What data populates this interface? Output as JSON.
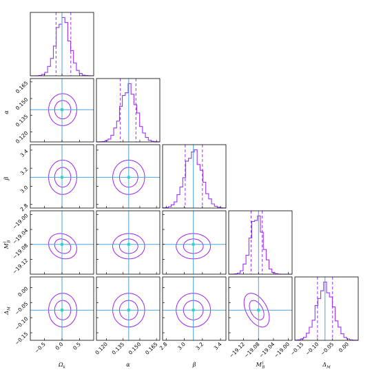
{
  "chart_data": {
    "type": "corner",
    "parameters": [
      {
        "key": "omega",
        "label": "Ω_k",
        "sub": "k",
        "base": "Ω",
        "range": [
          -0.9,
          0.9
        ],
        "ticks": [
          -0.5,
          0.0,
          0.5
        ],
        "tick_labels": [
          "−0.5",
          "0.0",
          "0.5"
        ],
        "truth": 0.0,
        "mean": 0.02,
        "sigma": 0.2,
        "q16": -0.17,
        "q84": 0.25
      },
      {
        "key": "alpha",
        "label": "α",
        "base": "α",
        "range": [
          0.111,
          0.168
        ],
        "ticks": [
          0.12,
          0.135,
          0.15,
          0.165
        ],
        "tick_labels": [
          "0.120",
          "0.135",
          "0.150",
          "0.165"
        ],
        "truth": 0.14,
        "mean": 0.14,
        "sigma": 0.0072,
        "q16": 0.1325,
        "q84": 0.1465
      },
      {
        "key": "beta",
        "label": "β",
        "base": "β",
        "range": [
          2.76,
          3.46
        ],
        "ticks": [
          2.8,
          3.0,
          3.2,
          3.4
        ],
        "tick_labels": [
          "2.8",
          "3.0",
          "3.2",
          "3.4"
        ],
        "truth": 3.1,
        "mean": 3.1,
        "sigma": 0.095,
        "q16": 3.01,
        "q84": 3.2
      },
      {
        "key": "mb",
        "label": "M_B^1",
        "base": "M",
        "sub": "B",
        "sup": "1",
        "range": [
          -19.16,
          -18.99
        ],
        "ticks": [
          -19.12,
          -19.08,
          -19.04,
          -19.0
        ],
        "tick_labels": [
          "−19.12",
          "−19.08",
          "−19.04",
          "−19.00"
        ],
        "truth": -19.08,
        "mean": -19.085,
        "sigma": 0.017,
        "q16": -19.1,
        "q84": -19.07
      },
      {
        "key": "dm",
        "label": "Δ_M",
        "base": "Δ",
        "sub": "M",
        "range": [
          -0.175,
          0.035
        ],
        "ticks": [
          -0.15,
          -0.1,
          -0.05,
          0.0
        ],
        "tick_labels": [
          "−0.15",
          "−0.10",
          "−0.05",
          "0.00"
        ],
        "truth": -0.075,
        "mean": -0.075,
        "sigma": 0.028,
        "q16": -0.1,
        "q84": -0.05
      }
    ],
    "y_tick_params": {
      "alpha": {
        "ticks": [
          0.12,
          0.135,
          0.15,
          0.165
        ],
        "tick_labels": [
          "0.120",
          "0.135",
          "0.150",
          "0.165"
        ]
      },
      "beta": {
        "ticks": [
          2.8,
          3.0,
          3.2,
          3.4
        ],
        "tick_labels": [
          "2.8",
          "3.0",
          "3.2",
          "3.4"
        ]
      },
      "mb": {
        "ticks": [
          -19.12,
          -19.08,
          -19.04,
          -19.0
        ],
        "tick_labels": [
          "−19.12",
          "−19.08",
          "−19.04",
          "−19.00"
        ]
      },
      "dm": {
        "ticks": [
          -0.15,
          -0.1,
          -0.05,
          0.0
        ],
        "tick_labels": [
          "−0.15",
          "−0.10",
          "−0.05",
          "0.00"
        ]
      }
    },
    "correlations": {
      "mb|dm": -0.45,
      "omega|mb": -0.2
    },
    "colors": {
      "histogram": "#9b30ff",
      "contour": "#a020f0",
      "density": "#d000ff",
      "truth_line": "#4aa3df",
      "truth_point": "#2fd4c4"
    },
    "quantile_lines": "dashed",
    "grid": false
  }
}
